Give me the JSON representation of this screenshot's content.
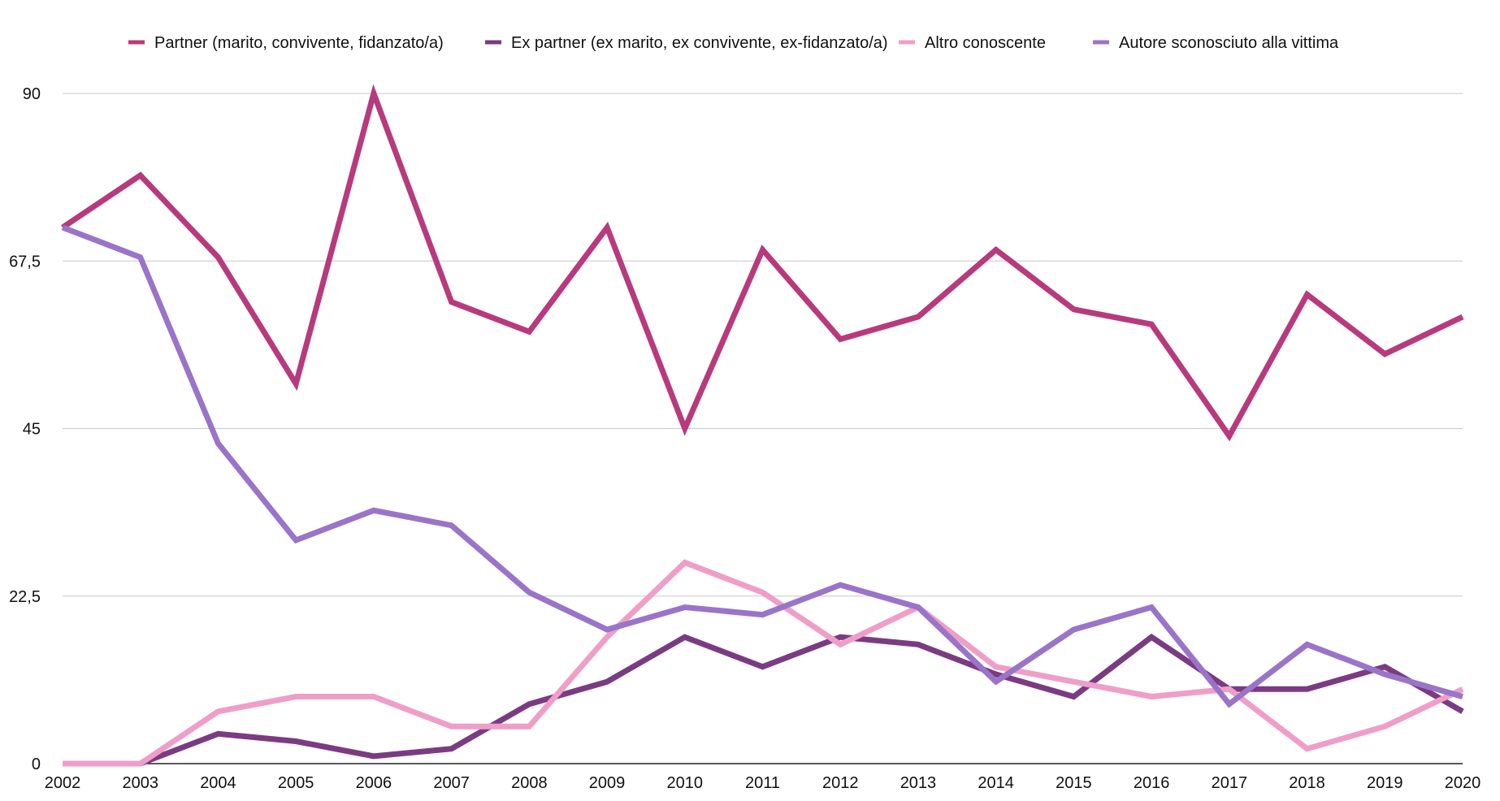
{
  "chart_data": {
    "type": "line",
    "title": "",
    "xlabel": "",
    "ylabel": "",
    "x": [
      "2002",
      "2003",
      "2004",
      "2005",
      "2006",
      "2007",
      "2008",
      "2009",
      "2010",
      "2011",
      "2012",
      "2013",
      "2014",
      "2015",
      "2016",
      "2017",
      "2018",
      "2019",
      "2020"
    ],
    "ylim": [
      0,
      90
    ],
    "yticks": [
      0,
      22.5,
      45,
      67.5,
      90
    ],
    "ytick_labels": [
      "0",
      "22,5",
      "45",
      "67,5",
      "90"
    ],
    "grid": "horizontal",
    "legend_position": "top",
    "series": [
      {
        "name": "Partner (marito, convivente, fidanzato/a)",
        "color": "#b83a7c",
        "values": [
          72,
          79,
          68,
          51,
          90,
          62,
          58,
          72,
          45,
          69,
          57,
          60,
          69,
          61,
          59,
          44,
          63,
          55,
          60
        ]
      },
      {
        "name": "Ex partner (ex marito, ex convivente, ex-fidanzato/a)",
        "color": "#7b3b82",
        "values": [
          0,
          0,
          4,
          3,
          1,
          2,
          8,
          11,
          17,
          13,
          17,
          16,
          12,
          9,
          17,
          10,
          10,
          13,
          7
        ]
      },
      {
        "name": "Altro conoscente",
        "color": "#ef9ec8",
        "values": [
          0,
          0,
          7,
          9,
          9,
          5,
          5,
          17,
          27,
          23,
          16,
          21,
          13,
          11,
          9,
          10,
          2,
          5,
          10
        ]
      },
      {
        "name": "Autore sconosciuto alla vittima",
        "color": "#9a74c9",
        "values": [
          72,
          68,
          43,
          30,
          34,
          32,
          23,
          18,
          21,
          20,
          24,
          21,
          11,
          18,
          21,
          8,
          16,
          12,
          9
        ]
      }
    ]
  }
}
